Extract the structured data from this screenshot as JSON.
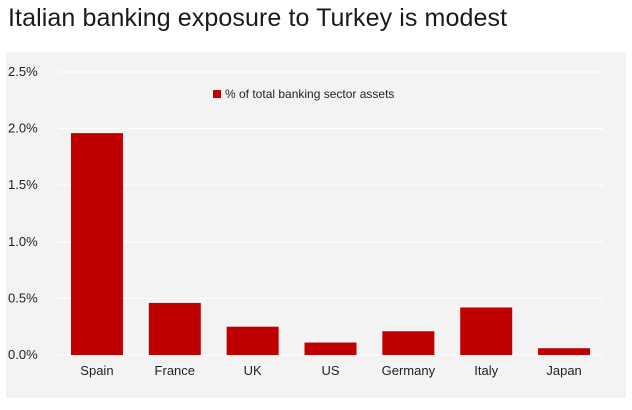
{
  "title": "Italian banking exposure to Turkey is modest",
  "chart_data": {
    "type": "bar",
    "categories": [
      "Spain",
      "France",
      "UK",
      "US",
      "Germany",
      "Italy",
      "Japan"
    ],
    "series": [
      {
        "name": "% of total banking sector assets",
        "values": [
          1.96,
          0.46,
          0.25,
          0.11,
          0.21,
          0.42,
          0.06
        ]
      }
    ],
    "ytick_labels": [
      "0.0%",
      "0.5%",
      "1.0%",
      "1.5%",
      "2.0%",
      "2.5%"
    ],
    "ylim": [
      0,
      2.5
    ],
    "grid": true,
    "legend_position": "top-center",
    "bar_color": "#c00000"
  }
}
